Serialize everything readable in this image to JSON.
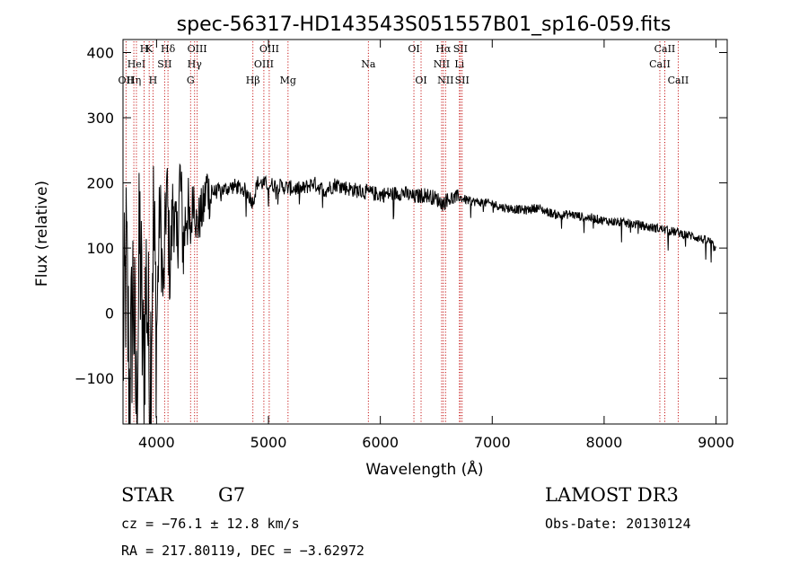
{
  "chart_data": {
    "type": "line",
    "title": "spec-56317-HD143543S051557B01_sp16-059.fits",
    "xlabel": "Wavelength (Å)",
    "ylabel": "Flux (relative)",
    "xlim": [
      3700,
      9100
    ],
    "ylim": [
      -170,
      420
    ],
    "xticks": [
      4000,
      5000,
      6000,
      7000,
      8000,
      9000
    ],
    "yticks": [
      -100,
      0,
      100,
      200,
      300,
      400
    ],
    "xtick_labels": [
      "4000",
      "5000",
      "6000",
      "7000",
      "8000",
      "9000"
    ],
    "ytick_labels": [
      "−100",
      "0",
      "100",
      "200",
      "300",
      "400"
    ],
    "series": [
      {
        "name": "flux",
        "x": [
          3700,
          3730,
          3760,
          3790,
          3820,
          3850,
          3880,
          3910,
          3940,
          3970,
          4000,
          4030,
          4060,
          4090,
          4120,
          4150,
          4180,
          4210,
          4240,
          4270,
          4300,
          4330,
          4360,
          4390,
          4420,
          4450,
          4480,
          4500,
          4600,
          4700,
          4800,
          4860,
          4900,
          5000,
          5100,
          5200,
          5300,
          5400,
          5500,
          5600,
          5700,
          5800,
          5900,
          6000,
          6100,
          6200,
          6300,
          6400,
          6500,
          6560,
          6600,
          6700,
          6800,
          6900,
          7000,
          7100,
          7200,
          7300,
          7400,
          7500,
          7600,
          7700,
          7800,
          7900,
          8000,
          8100,
          8200,
          8300,
          8400,
          8500,
          8600,
          8700,
          8800,
          8900,
          8950,
          9000
        ],
        "y": [
          -60,
          80,
          -140,
          50,
          -160,
          120,
          -90,
          60,
          -120,
          140,
          -30,
          170,
          20,
          200,
          60,
          180,
          90,
          210,
          100,
          170,
          110,
          190,
          130,
          150,
          160,
          200,
          175,
          185,
          190,
          195,
          188,
          170,
          200,
          198,
          195,
          192,
          190,
          200,
          188,
          198,
          192,
          188,
          185,
          182,
          183,
          185,
          178,
          182,
          176,
          168,
          175,
          178,
          172,
          170,
          168,
          162,
          160,
          158,
          162,
          155,
          150,
          152,
          148,
          146,
          142,
          140,
          138,
          136,
          132,
          130,
          126,
          122,
          118,
          112,
          110,
          95
        ]
      }
    ],
    "line_markers": [
      {
        "x": 3727,
        "label": "OII",
        "row": 3
      },
      {
        "x": 3797,
        "label": "Hη",
        "row": 3
      },
      {
        "x": 3820,
        "label": "HeI",
        "row": 2
      },
      {
        "x": 3889,
        "label": "H",
        "row": 1
      },
      {
        "x": 3934,
        "label": "K",
        "row": 1
      },
      {
        "x": 3968,
        "label": "H",
        "row": 3
      },
      {
        "x": 4072,
        "label": "SII",
        "row": 2
      },
      {
        "x": 4102,
        "label": "Hδ",
        "row": 1
      },
      {
        "x": 4304,
        "label": "G",
        "row": 3
      },
      {
        "x": 4340,
        "label": "Hγ",
        "row": 2
      },
      {
        "x": 4363,
        "label": "OIII",
        "row": 1
      },
      {
        "x": 4861,
        "label": "Hβ",
        "row": 3
      },
      {
        "x": 4959,
        "label": "OIII",
        "row": 2
      },
      {
        "x": 5007,
        "label": "OIII",
        "row": 1
      },
      {
        "x": 5175,
        "label": "Mg",
        "row": 3
      },
      {
        "x": 5893,
        "label": "Na",
        "row": 2
      },
      {
        "x": 6300,
        "label": "OI",
        "row": 1
      },
      {
        "x": 6364,
        "label": "OI",
        "row": 3
      },
      {
        "x": 6548,
        "label": "NII",
        "row": 2
      },
      {
        "x": 6563,
        "label": "Hα",
        "row": 1
      },
      {
        "x": 6583,
        "label": "NII",
        "row": 3
      },
      {
        "x": 6707,
        "label": "Li",
        "row": 2
      },
      {
        "x": 6716,
        "label": "SII",
        "row": 1
      },
      {
        "x": 6731,
        "label": "SII",
        "row": 3
      },
      {
        "x": 8498,
        "label": "CaII",
        "row": 2
      },
      {
        "x": 8542,
        "label": "CaII",
        "row": 1
      },
      {
        "x": 8662,
        "label": "CaII",
        "row": 3
      }
    ]
  },
  "info": {
    "object_class": "STAR",
    "subclass": "G7",
    "survey": "LAMOST DR3",
    "cz": "cz = −76.1 ± 12.8 km/s",
    "obs_date": "Obs-Date: 20130124",
    "radec": "RA = 217.80119, DEC =  −3.62972"
  },
  "colors": {
    "spectrum": "#000000",
    "marker": "#c00000",
    "axis": "#000000"
  }
}
